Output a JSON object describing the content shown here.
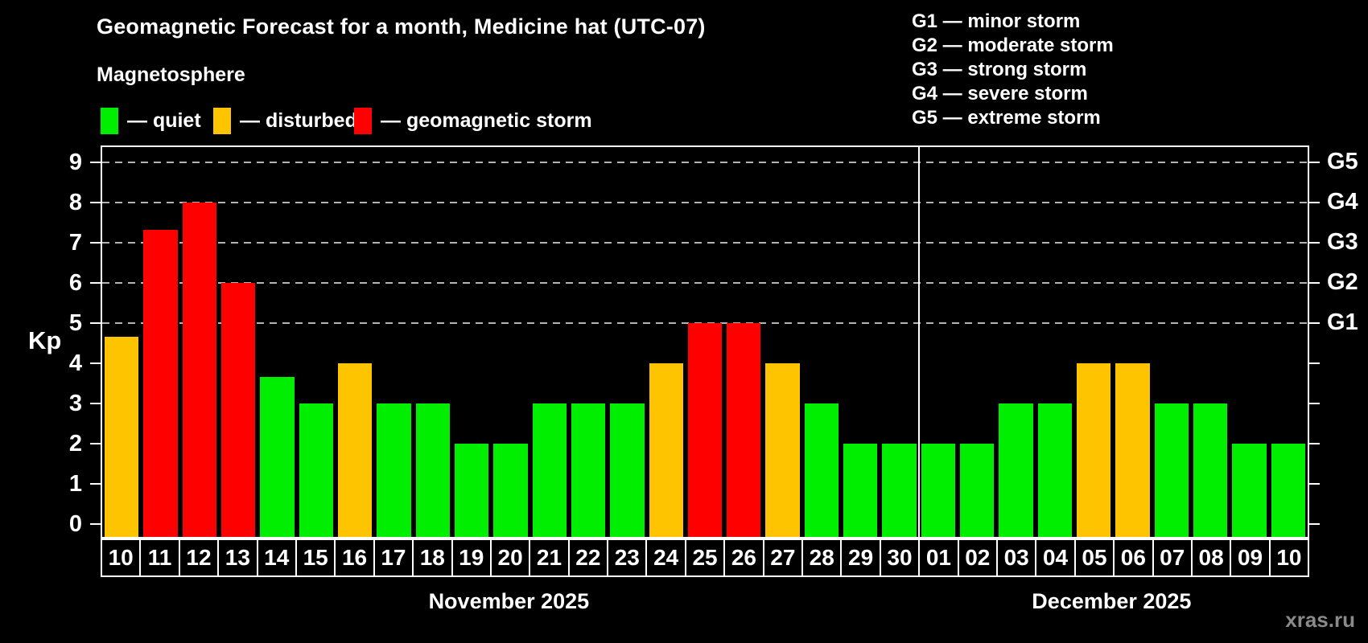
{
  "title": "Geomagnetic Forecast for a month, Medicine hat (UTC-07)",
  "subtitle": "Magnetosphere",
  "legend": {
    "quiet": {
      "label": "— quiet",
      "color": "#00ee00"
    },
    "disturbed": {
      "label": "— disturbed",
      "color": "#ffc400"
    },
    "storm": {
      "label": "— geomagnetic storm",
      "color": "#ff0000"
    }
  },
  "g_scale_legend": [
    {
      "label": "G1 — minor storm"
    },
    {
      "label": "G2 — moderate storm"
    },
    {
      "label": "G3 — strong storm"
    },
    {
      "label": "G4 — severe storm"
    },
    {
      "label": "G5 — extreme storm"
    }
  ],
  "watermark": "xras.ru",
  "colors": {
    "background": "#000000",
    "axis": "#ffffff",
    "gridline": "#b4b4b4",
    "watermark_text": "#8a8a8a"
  },
  "chart_data": {
    "type": "bar",
    "title": "Geomagnetic Forecast for a month, Medicine hat (UTC-07)",
    "ylabel": "Kp",
    "ylim": [
      0,
      9
    ],
    "yticks": [
      0,
      1,
      2,
      3,
      4,
      5,
      6,
      7,
      8,
      9
    ],
    "gridlines_kp": [
      5,
      6,
      7,
      8,
      9
    ],
    "grid": "dashed horizontal at storm levels only",
    "legend_position": "top",
    "right_axis": [
      {
        "kp": 5,
        "label": "G1"
      },
      {
        "kp": 6,
        "label": "G2"
      },
      {
        "kp": 7,
        "label": "G3"
      },
      {
        "kp": 8,
        "label": "G4"
      },
      {
        "kp": 9,
        "label": "G5"
      }
    ],
    "months": [
      {
        "label": "November 2025",
        "days": 21
      },
      {
        "label": "December 2025",
        "days": 10
      }
    ],
    "categories": [
      "10",
      "11",
      "12",
      "13",
      "14",
      "15",
      "16",
      "17",
      "18",
      "19",
      "20",
      "21",
      "22",
      "23",
      "24",
      "25",
      "26",
      "27",
      "28",
      "29",
      "30",
      "01",
      "02",
      "03",
      "04",
      "05",
      "06",
      "07",
      "08",
      "09",
      "10"
    ],
    "values": [
      4.67,
      7.33,
      8,
      6,
      3.67,
      3,
      4,
      3,
      3,
      2,
      2,
      3,
      3,
      3,
      4,
      5,
      5,
      4,
      3,
      2,
      2,
      2,
      2,
      3,
      3,
      4,
      4,
      3,
      3,
      2,
      2
    ],
    "statuses": [
      "disturbed",
      "storm",
      "storm",
      "storm",
      "quiet",
      "quiet",
      "disturbed",
      "quiet",
      "quiet",
      "quiet",
      "quiet",
      "quiet",
      "quiet",
      "quiet",
      "disturbed",
      "storm",
      "storm",
      "disturbed",
      "quiet",
      "quiet",
      "quiet",
      "quiet",
      "quiet",
      "quiet",
      "quiet",
      "disturbed",
      "disturbed",
      "quiet",
      "quiet",
      "quiet",
      "quiet"
    ]
  }
}
